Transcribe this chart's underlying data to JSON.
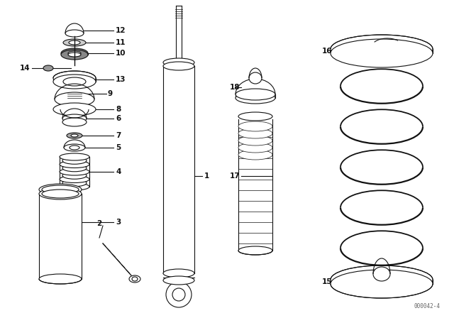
{
  "bg_color": "#ffffff",
  "line_color": "#111111",
  "fig_id": "000042-4",
  "lw": 0.8,
  "fs": 7.5
}
